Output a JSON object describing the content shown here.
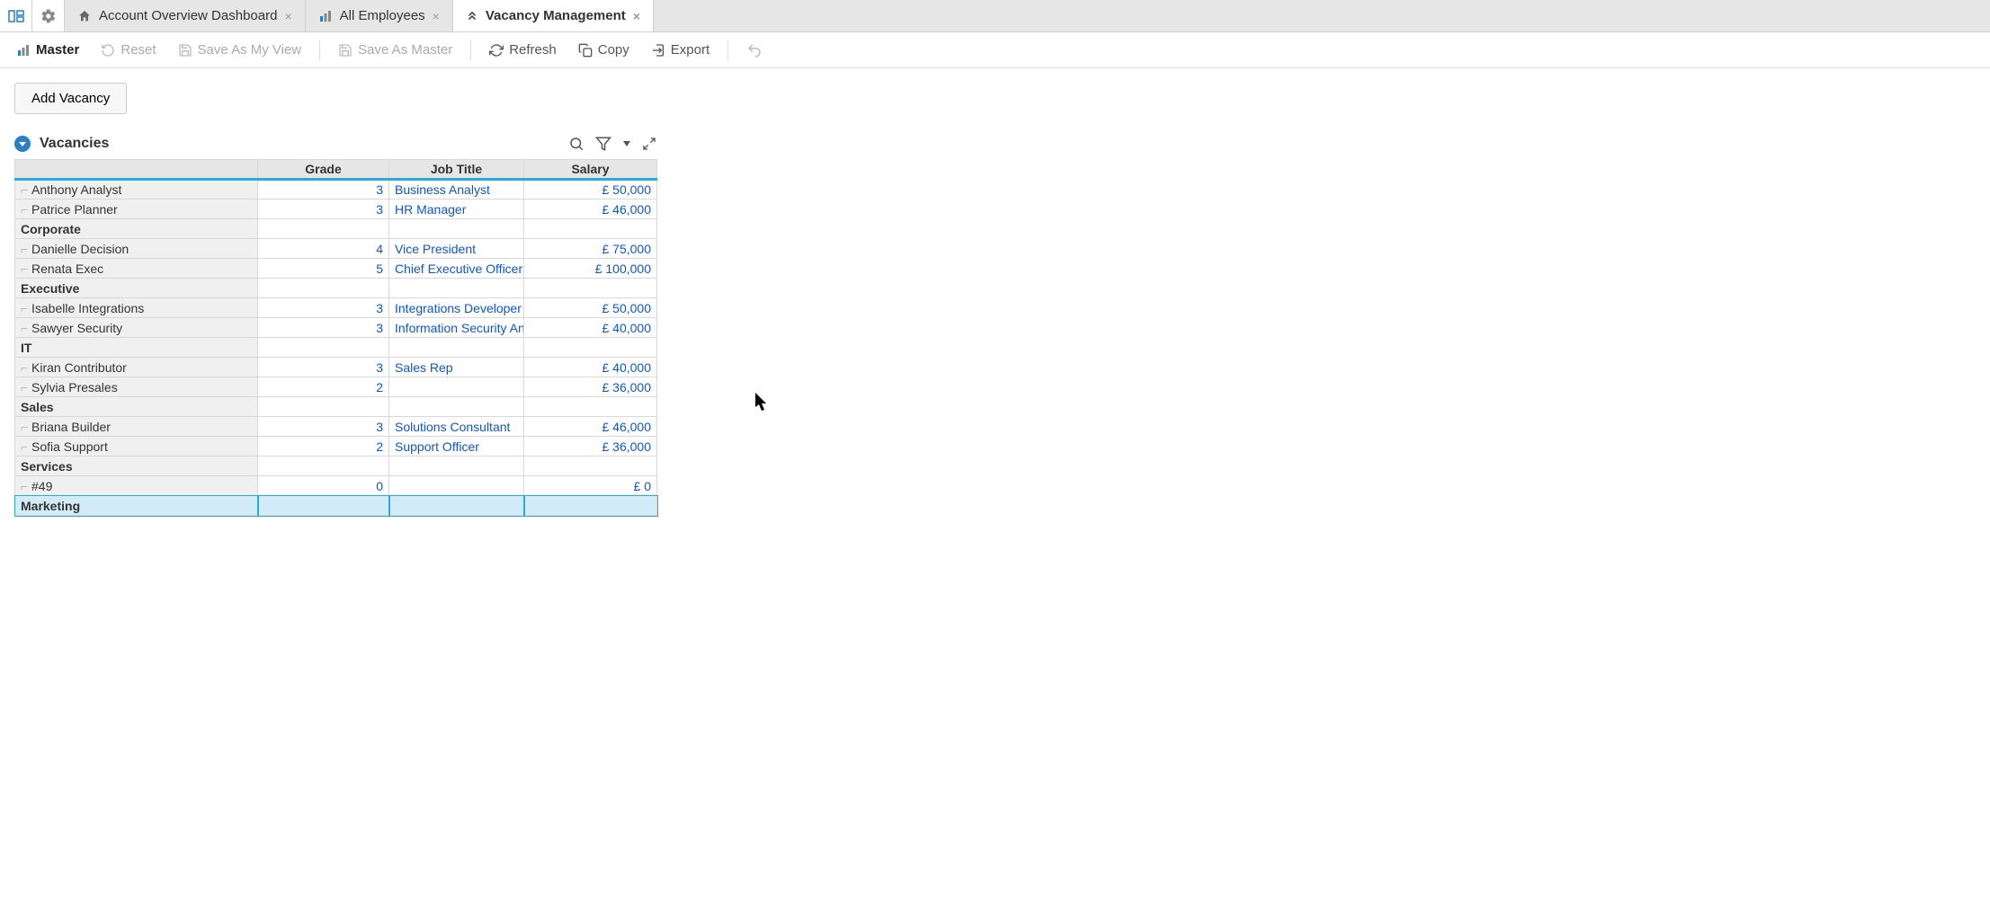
{
  "colors": {
    "accent": "#29abe2",
    "link": "#1155cc",
    "tabbar_bg": "#e6e6e6",
    "grid_header_bg": "#e6e6e6",
    "selected_bg": "#d1ecf7"
  },
  "tabs": [
    {
      "icon": "home",
      "label": "Account Overview Dashboard",
      "active": false
    },
    {
      "icon": "chart",
      "label": "All Employees",
      "active": false
    },
    {
      "icon": "chevrons-up",
      "label": "Vacancy Management",
      "active": true
    }
  ],
  "toolbar": {
    "master": "Master",
    "reset": "Reset",
    "save_as_my_view": "Save As My View",
    "save_as_master": "Save As Master",
    "refresh": "Refresh",
    "copy": "Copy",
    "export": "Export"
  },
  "add_button": "Add Vacancy",
  "section": {
    "title": "Vacancies"
  },
  "grid": {
    "columns": [
      "Grade",
      "Job Title",
      "Salary"
    ],
    "rows": [
      {
        "type": "item",
        "name": "Anthony Analyst",
        "grade": "3",
        "job": "Business Analyst",
        "salary": "£ 50,000"
      },
      {
        "type": "item",
        "name": "Patrice Planner",
        "grade": "3",
        "job": "HR Manager",
        "salary": "£ 46,000"
      },
      {
        "type": "group",
        "name": "Corporate"
      },
      {
        "type": "item",
        "name": "Danielle Decision",
        "grade": "4",
        "job": "Vice President",
        "salary": "£ 75,000"
      },
      {
        "type": "item",
        "name": "Renata Exec",
        "grade": "5",
        "job": "Chief Executive Officer",
        "salary": "£ 100,000"
      },
      {
        "type": "group",
        "name": "Executive"
      },
      {
        "type": "item",
        "name": "Isabelle Integrations",
        "grade": "3",
        "job": "Integrations Developer",
        "salary": "£ 50,000"
      },
      {
        "type": "item",
        "name": "Sawyer Security",
        "grade": "3",
        "job": "Information Security Analyst",
        "salary": "£ 40,000"
      },
      {
        "type": "group",
        "name": "IT"
      },
      {
        "type": "item",
        "name": "Kiran Contributor",
        "grade": "3",
        "job": "Sales Rep",
        "salary": "£ 40,000"
      },
      {
        "type": "item",
        "name": "Sylvia Presales",
        "grade": "2",
        "job": "",
        "salary": "£ 36,000"
      },
      {
        "type": "group",
        "name": "Sales"
      },
      {
        "type": "item",
        "name": "Briana Builder",
        "grade": "3",
        "job": "Solutions Consultant",
        "salary": "£ 46,000"
      },
      {
        "type": "item",
        "name": "Sofia Support",
        "grade": "2",
        "job": "Support Officer",
        "salary": "£ 36,000"
      },
      {
        "type": "group",
        "name": "Services"
      },
      {
        "type": "item",
        "name": "#49",
        "grade": "0",
        "job": "",
        "salary": "£ 0"
      },
      {
        "type": "group",
        "name": "Marketing",
        "selected": true
      }
    ]
  }
}
